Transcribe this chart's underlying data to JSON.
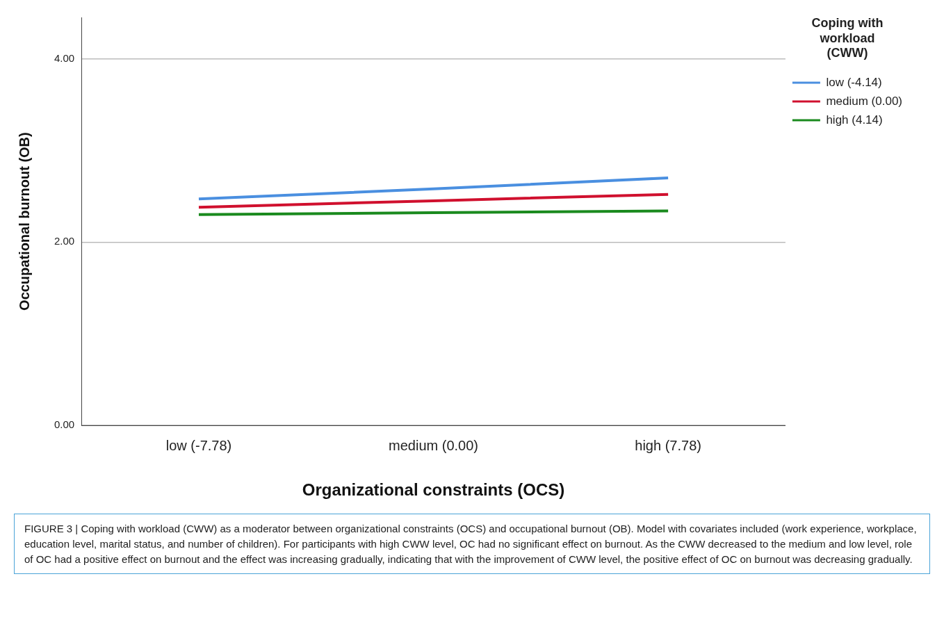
{
  "chart_data": {
    "type": "line",
    "xlabel": "Organizational constraints (OCS)",
    "ylabel": "Occupational burnout (OB)",
    "legend_title": "Coping with workload (CWW)",
    "categories": [
      "low (-7.78)",
      "medium (0.00)",
      "high (7.78)"
    ],
    "series": [
      {
        "name": "low (-4.14)",
        "color": "#4a8fe0",
        "values": [
          2.47,
          2.58,
          2.7
        ]
      },
      {
        "name": "medium (0.00)",
        "color": "#d0102e",
        "values": [
          2.38,
          2.45,
          2.52
        ]
      },
      {
        "name": "high (4.14)",
        "color": "#1a8a1e",
        "values": [
          2.3,
          2.32,
          2.34
        ]
      }
    ],
    "ylim": [
      0,
      4.45
    ],
    "yticks": [
      {
        "value": 0,
        "label": "0.00"
      },
      {
        "value": 2,
        "label": "2.00"
      },
      {
        "value": 4,
        "label": "4.00"
      }
    ],
    "grid": "y",
    "legend": "top right",
    "marker": "none",
    "line_style": "solid",
    "annotations": [
      "FIGURE 3 | Coping with workload (CWW) as a moderator between organizational constraints (OCS) and occupational burnout (OB). Model with covariates included (work experience, workplace, education level, marital status, and number of children). For participants with high CWW level, OC had no significant effect on burnout. As the CWW decreased to the medium and low level, role of OC had a positive effect on burnout and the effect was increasing gradually, indicating that with the improvement of CWW level, the positive effect of OC on burnout was decreasing gradually."
    ]
  }
}
